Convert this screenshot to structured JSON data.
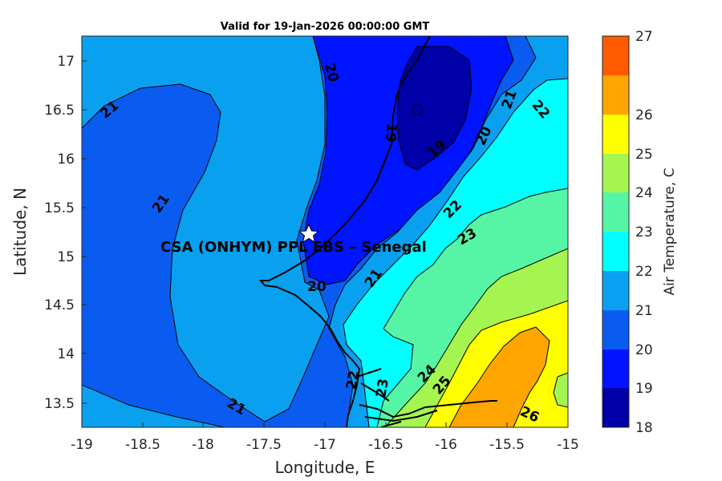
{
  "title": "Valid for 19-Jan-2026 00:00:00 GMT",
  "x_axis": {
    "label": "Longitude, E",
    "ticks": [
      "-19",
      "-18.5",
      "-18",
      "-17.5",
      "-17",
      "-16.5",
      "-16",
      "-15.5",
      "-15"
    ]
  },
  "y_axis": {
    "label": "Latitude, N",
    "ticks": [
      "13.5",
      "14",
      "14.5",
      "15",
      "15.5",
      "16",
      "16.5",
      "17"
    ]
  },
  "colorbar": {
    "label": "Air Temperature, C",
    "ticks": [
      "18",
      "19",
      "20",
      "21",
      "22",
      "23",
      "24",
      "25",
      "26",
      "27"
    ],
    "colors": [
      "#0000a8",
      "#0014ff",
      "#0a5cf0",
      "#0aa0f0",
      "#00ffff",
      "#55f5a5",
      "#a5f550",
      "#ffff00",
      "#ffa500",
      "#ff5a00"
    ]
  },
  "site": {
    "label": "CSA (ONHYM) PPL EBS  – Senegal",
    "marker": "star-icon"
  },
  "contour_labels": {
    "l20_top": "20",
    "l19_a": "19",
    "l19_b": "19",
    "l20_right": "20",
    "l21_topright": "21",
    "l22_topright": "22",
    "l21_left_top": "21",
    "l21_left_mid": "21",
    "l22_mid": "22",
    "l23_mid": "23",
    "l20_lower": "20",
    "l21_lower": "21",
    "l22_low": "22",
    "l23_low": "23",
    "l24_low": "24",
    "l25_low": "25",
    "l26_low": "26",
    "l21_bottom": "21"
  }
}
